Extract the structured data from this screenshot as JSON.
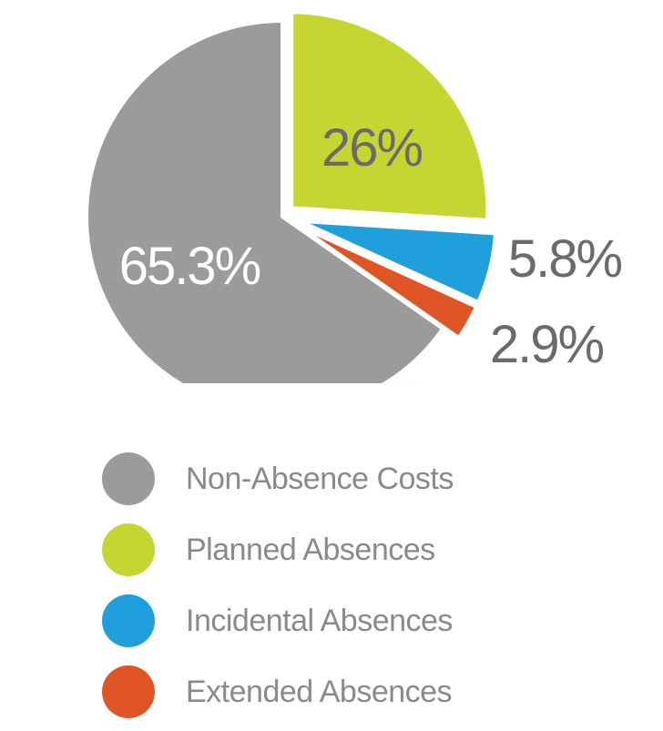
{
  "chart_data": {
    "type": "pie",
    "slices": [
      {
        "label": "Non-Absence Costs",
        "value": 65.3,
        "display": "65.3%",
        "color": "#9b9b9b",
        "text_color": "#ffffff"
      },
      {
        "label": "Planned Absences",
        "value": 26,
        "display": "26%",
        "color": "#c5d633",
        "text_color": "#6b6b6b"
      },
      {
        "label": "Incidental Absences",
        "value": 5.8,
        "display": "5.8%",
        "color": "#1fa0dc",
        "text_color": "#6b6b6b"
      },
      {
        "label": "Extended Absences",
        "value": 2.9,
        "display": "2.9%",
        "color": "#e05526",
        "text_color": "#6b6b6b"
      }
    ],
    "legend_placement": "bottom"
  }
}
